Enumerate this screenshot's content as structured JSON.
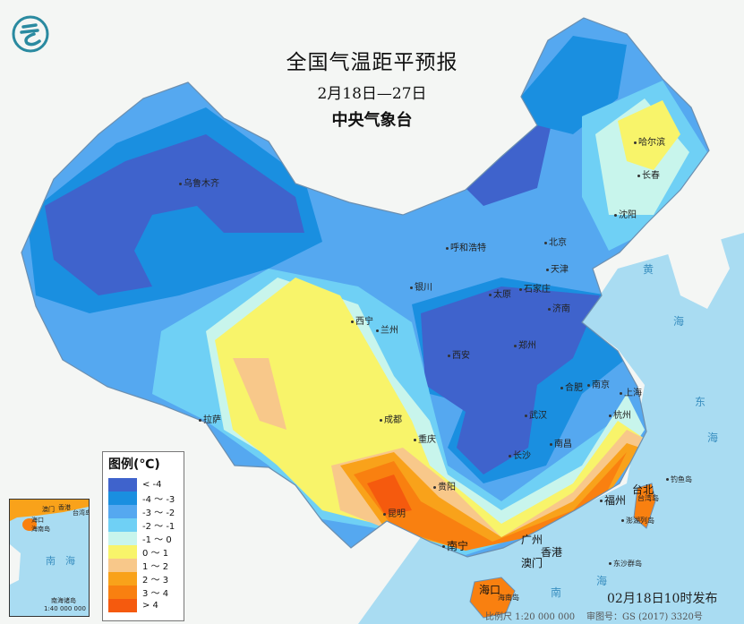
{
  "header": {
    "title": "全国气温距平预报",
    "date_range": "2月18日—27日",
    "issuer": "中央气象台"
  },
  "logo": {
    "icon": "cma-logo",
    "color": "#2a8aa0"
  },
  "colors": {
    "sea": "#a9dcf2",
    "land_outside": "#f4f6f4",
    "border": "#6b8fb0"
  },
  "cities": {
    "urumqi": "乌鲁木齐",
    "harbin": "哈尔滨",
    "changchun": "长春",
    "shenyang": "沈阳",
    "hohhot": "呼和浩特",
    "beijing": "北京",
    "tianjin": "天津",
    "yinchuan": "银川",
    "taiyuan": "太原",
    "shijiazhuang": "石家庄",
    "jinan": "济南",
    "xining": "西宁",
    "lanzhou": "兰州",
    "xian": "西安",
    "zhengzhou": "郑州",
    "hefei": "合肥",
    "nanjing": "南京",
    "shanghai": "上海",
    "lhasa": "拉萨",
    "chengdu": "成都",
    "wuhan": "武汉",
    "hangzhou": "杭州",
    "chongqing": "重庆",
    "changsha": "长沙",
    "nanchang": "南昌",
    "guiyang": "贵阳",
    "kunming": "昆明",
    "fuzhou": "福州",
    "taipei": "台北",
    "taiwan_island": "台湾岛",
    "penghu": "澎湖列岛",
    "guangzhou": "广州",
    "hongkong": "香港",
    "macau": "澳门",
    "nanning": "南宁",
    "haikou": "海口",
    "hainan_island": "海南岛",
    "diaoyu": "钓鱼岛",
    "dongsha": "东沙群岛"
  },
  "seas": {
    "yellow_sea_1": "黄",
    "yellow_sea_2": "海",
    "east_sea_1": "东",
    "east_sea_2": "海",
    "south_sea_1": "南",
    "south_sea_2": "海"
  },
  "legend": {
    "title": "图例(℃)",
    "items": [
      {
        "label": "< -4",
        "color": "#3f63cc"
      },
      {
        "label": "-4 ～ -3",
        "color": "#1a8fe0"
      },
      {
        "label": "-3 ～ -2",
        "color": "#55a8f0"
      },
      {
        "label": "-2 ～ -1",
        "color": "#6fd0f5"
      },
      {
        "label": "-1 ～ 0",
        "color": "#c8f5ec"
      },
      {
        "label": "0 ～ 1",
        "color": "#f8f46a"
      },
      {
        "label": "1 ～ 2",
        "color": "#f8c88a"
      },
      {
        "label": "2 ～ 3",
        "color": "#f9a21a"
      },
      {
        "label": "3 ～ 4",
        "color": "#f98010"
      },
      {
        "label": "> 4",
        "color": "#f55a0e"
      }
    ]
  },
  "inset": {
    "sea_1": "南",
    "sea_2": "海",
    "haikou": "海口",
    "hainan": "海南岛",
    "macau": "澳门",
    "hongkong": "香港",
    "taiwan": "台湾岛",
    "title": "南海诸岛",
    "scale": "1:40 000 000"
  },
  "footer": {
    "published": "02月18日10时发布",
    "scale": "比例尺 1:20 000 000",
    "review_no": "审图号：GS (2017) 3320号"
  }
}
